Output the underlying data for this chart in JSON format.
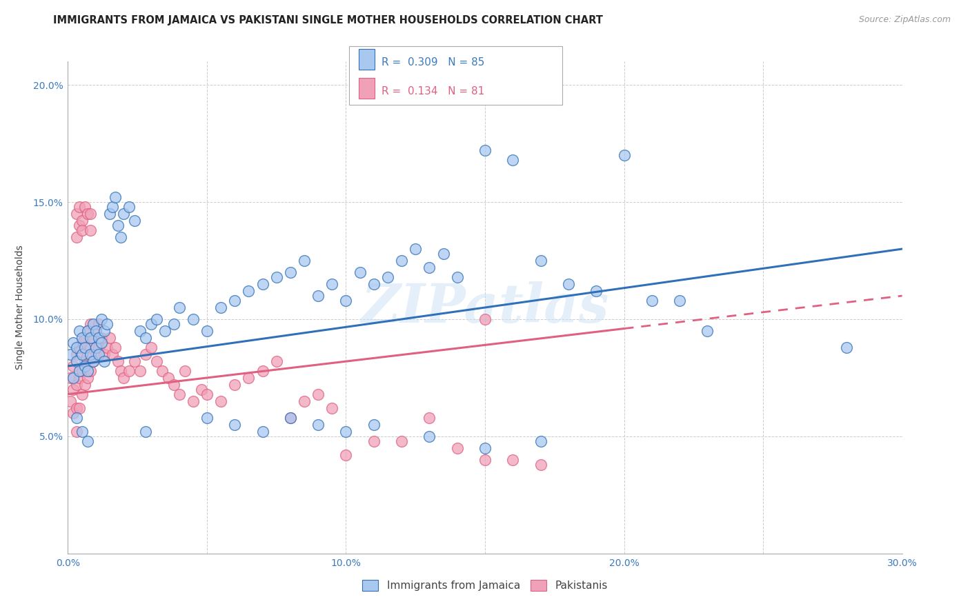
{
  "title": "IMMIGRANTS FROM JAMAICA VS PAKISTANI SINGLE MOTHER HOUSEHOLDS CORRELATION CHART",
  "source": "Source: ZipAtlas.com",
  "ylabel": "Single Mother Households",
  "xlabel": "",
  "xlim": [
    0.0,
    0.3
  ],
  "ylim": [
    0.0,
    0.21
  ],
  "xticks": [
    0.0,
    0.05,
    0.1,
    0.15,
    0.2,
    0.25,
    0.3
  ],
  "xticklabels": [
    "0.0%",
    "",
    "10.0%",
    "",
    "20.0%",
    "",
    "30.0%"
  ],
  "yticks": [
    0.0,
    0.05,
    0.1,
    0.15,
    0.2
  ],
  "yticklabels": [
    "",
    "5.0%",
    "10.0%",
    "15.0%",
    "20.0%"
  ],
  "legend_r1": "0.309",
  "legend_n1": "85",
  "legend_r2": "0.134",
  "legend_n2": "81",
  "color_blue": "#a8c8f0",
  "color_pink": "#f0a0b8",
  "color_blue_line": "#3070b8",
  "color_pink_line": "#e06080",
  "watermark": "ZIPatlas",
  "blue_line_start_y": 0.08,
  "blue_line_end_y": 0.13,
  "pink_line_start_y": 0.068,
  "pink_line_end_y": 0.11,
  "blue_scatter_x": [
    0.001,
    0.002,
    0.002,
    0.003,
    0.003,
    0.004,
    0.004,
    0.005,
    0.005,
    0.006,
    0.006,
    0.007,
    0.007,
    0.008,
    0.008,
    0.009,
    0.009,
    0.01,
    0.01,
    0.011,
    0.011,
    0.012,
    0.012,
    0.013,
    0.013,
    0.014,
    0.015,
    0.016,
    0.017,
    0.018,
    0.019,
    0.02,
    0.022,
    0.024,
    0.026,
    0.028,
    0.03,
    0.032,
    0.035,
    0.038,
    0.04,
    0.045,
    0.05,
    0.055,
    0.06,
    0.065,
    0.07,
    0.075,
    0.08,
    0.085,
    0.09,
    0.095,
    0.1,
    0.105,
    0.11,
    0.115,
    0.12,
    0.125,
    0.13,
    0.135,
    0.14,
    0.15,
    0.16,
    0.17,
    0.18,
    0.19,
    0.2,
    0.21,
    0.22,
    0.23,
    0.05,
    0.06,
    0.07,
    0.08,
    0.09,
    0.1,
    0.11,
    0.13,
    0.15,
    0.17,
    0.003,
    0.005,
    0.007,
    0.028,
    0.28
  ],
  "blue_scatter_y": [
    0.085,
    0.09,
    0.075,
    0.088,
    0.082,
    0.095,
    0.078,
    0.092,
    0.085,
    0.088,
    0.08,
    0.095,
    0.078,
    0.092,
    0.085,
    0.098,
    0.082,
    0.095,
    0.088,
    0.092,
    0.085,
    0.1,
    0.09,
    0.095,
    0.082,
    0.098,
    0.145,
    0.148,
    0.152,
    0.14,
    0.135,
    0.145,
    0.148,
    0.142,
    0.095,
    0.092,
    0.098,
    0.1,
    0.095,
    0.098,
    0.105,
    0.1,
    0.095,
    0.105,
    0.108,
    0.112,
    0.115,
    0.118,
    0.12,
    0.125,
    0.11,
    0.115,
    0.108,
    0.12,
    0.115,
    0.118,
    0.125,
    0.13,
    0.122,
    0.128,
    0.118,
    0.172,
    0.168,
    0.125,
    0.115,
    0.112,
    0.17,
    0.108,
    0.108,
    0.095,
    0.058,
    0.055,
    0.052,
    0.058,
    0.055,
    0.052,
    0.055,
    0.05,
    0.045,
    0.048,
    0.058,
    0.052,
    0.048,
    0.052,
    0.088
  ],
  "pink_scatter_x": [
    0.001,
    0.001,
    0.002,
    0.002,
    0.002,
    0.003,
    0.003,
    0.003,
    0.003,
    0.004,
    0.004,
    0.004,
    0.005,
    0.005,
    0.005,
    0.006,
    0.006,
    0.006,
    0.007,
    0.007,
    0.007,
    0.008,
    0.008,
    0.008,
    0.009,
    0.009,
    0.01,
    0.01,
    0.011,
    0.011,
    0.012,
    0.013,
    0.014,
    0.015,
    0.016,
    0.017,
    0.018,
    0.019,
    0.02,
    0.022,
    0.024,
    0.026,
    0.028,
    0.03,
    0.032,
    0.034,
    0.036,
    0.038,
    0.04,
    0.042,
    0.045,
    0.048,
    0.05,
    0.055,
    0.06,
    0.065,
    0.07,
    0.075,
    0.08,
    0.085,
    0.09,
    0.095,
    0.1,
    0.11,
    0.12,
    0.13,
    0.14,
    0.15,
    0.16,
    0.17,
    0.003,
    0.003,
    0.004,
    0.004,
    0.005,
    0.005,
    0.006,
    0.007,
    0.008,
    0.008,
    0.15
  ],
  "pink_scatter_y": [
    0.075,
    0.065,
    0.08,
    0.07,
    0.06,
    0.085,
    0.072,
    0.062,
    0.052,
    0.088,
    0.075,
    0.062,
    0.09,
    0.078,
    0.068,
    0.092,
    0.082,
    0.072,
    0.095,
    0.085,
    0.075,
    0.098,
    0.088,
    0.078,
    0.092,
    0.082,
    0.095,
    0.085,
    0.098,
    0.088,
    0.092,
    0.085,
    0.088,
    0.092,
    0.085,
    0.088,
    0.082,
    0.078,
    0.075,
    0.078,
    0.082,
    0.078,
    0.085,
    0.088,
    0.082,
    0.078,
    0.075,
    0.072,
    0.068,
    0.078,
    0.065,
    0.07,
    0.068,
    0.065,
    0.072,
    0.075,
    0.078,
    0.082,
    0.058,
    0.065,
    0.068,
    0.062,
    0.042,
    0.048,
    0.048,
    0.058,
    0.045,
    0.04,
    0.04,
    0.038,
    0.135,
    0.145,
    0.14,
    0.148,
    0.142,
    0.138,
    0.148,
    0.145,
    0.138,
    0.145,
    0.1
  ]
}
